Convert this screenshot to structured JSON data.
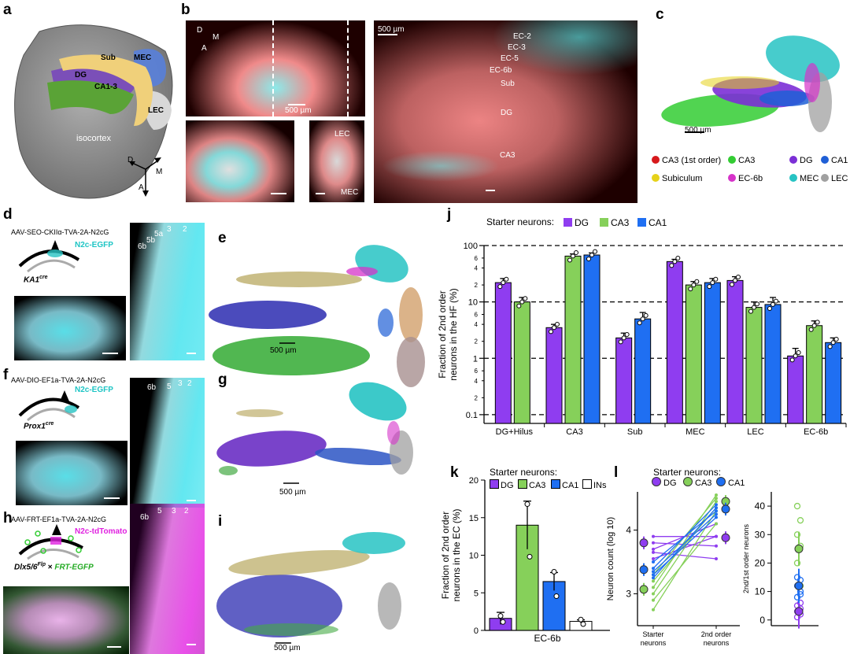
{
  "panels": {
    "a": "a",
    "b": "b",
    "c": "c",
    "d": "d",
    "e": "e",
    "f": "f",
    "g": "g",
    "h": "h",
    "i": "i",
    "j": "j",
    "k": "k",
    "l": "l"
  },
  "panel_a": {
    "labels": {
      "sub": "Sub",
      "mec": "MEC",
      "dg": "DG",
      "ca": "CA1-3",
      "lec": "LEC",
      "isocortex": "isocortex"
    },
    "compass": {
      "d": "D",
      "m": "M",
      "a": "A"
    }
  },
  "panel_b": {
    "compass": {
      "d": "D",
      "m": "M",
      "a": "A"
    },
    "scale1": "500 µm",
    "scale2": "500 µm",
    "lec": "LEC",
    "mec": "MEC",
    "layers": [
      "EC-2",
      "EC-3",
      "EC-5",
      "EC-6b",
      "Sub",
      "DG",
      "CA3"
    ]
  },
  "panel_c": {
    "scale": "500 µm",
    "legend": [
      {
        "label": "CA3 (1st order)",
        "color": "#d7191c"
      },
      {
        "label": "CA3",
        "color": "#33cc33"
      },
      {
        "label": "DG",
        "color": "#7b2fd6"
      },
      {
        "label": "CA1",
        "color": "#1f5fd6"
      },
      {
        "label": "Subiculum",
        "color": "#e6d21a"
      },
      {
        "label": "EC-6b",
        "color": "#d633c9"
      },
      {
        "label": "MEC",
        "color": "#27c3c3"
      },
      {
        "label": "LEC",
        "color": "#a0a0a0"
      }
    ]
  },
  "panel_d": {
    "vector": "AAV-SEO-CKIIα-TVA-2A-N2cG",
    "reporter": "N2c-EGFP",
    "mouse": "KA1",
    "mouse_sup": "cre",
    "layers": [
      "6b",
      "5b",
      "5a",
      "3",
      "2"
    ]
  },
  "panel_e": {
    "scale": "500 µm"
  },
  "panel_f": {
    "vector": "AAV-DIO-EF1a-TVA-2A-N2cG",
    "reporter": "N2c-EGFP",
    "mouse": "Prox1",
    "mouse_sup": "cre",
    "layers": [
      "6b",
      "5",
      "3",
      "2"
    ]
  },
  "panel_g": {
    "scale": "500 µm"
  },
  "panel_h": {
    "vector": "AAV-FRT-EF1a-TVA-2A-N2cG",
    "reporter": "N2c-tdTomato",
    "mouse1": "Dlx5/6",
    "mouse1_sup": "Flp",
    "cross": "×",
    "mouse2": "FRT-EGFP",
    "layers": [
      "6b",
      "5",
      "3",
      "2"
    ]
  },
  "panel_i": {
    "scale": "500 µm"
  },
  "panel_j": {
    "legend_title": "Starter neurons:",
    "ylabel_line1": "Fraction of 2nd order",
    "ylabel_line2": "neurons in the HF (%)",
    "yticks": [
      "100",
      "10",
      "1",
      "0.1"
    ],
    "yminor": [
      "6",
      "4",
      "2",
      "6",
      "4",
      "2",
      "6",
      "4",
      "2"
    ],
    "colors": {
      "DG": "#8f3df0",
      "CA3": "#86d05a",
      "CA1": "#1f6ff2"
    }
  },
  "panel_k": {
    "legend_title": "Starter neurons:",
    "ylabel_line1": "Fraction of 2nd order",
    "ylabel_line2": "neurons in the EC (%)",
    "yticks": [
      "0",
      "5",
      "10",
      "15",
      "20"
    ],
    "xlabel": "EC-6b"
  },
  "panel_l": {
    "legend_title": "Starter neurons:",
    "ylabel": "Neuron count (log 10)",
    "yticks": [
      "3",
      "4"
    ],
    "xticks": [
      [
        "Starter",
        "neurons"
      ],
      [
        "2nd order",
        "neurons"
      ]
    ],
    "ylabel2": "2nd/1st order neurons",
    "yticks2": [
      "0",
      "10",
      "20",
      "30",
      "40"
    ]
  },
  "chart_data": [
    {
      "type": "bar",
      "title": "",
      "ylabel": "Fraction of 2nd order neurons in the HF (%)",
      "yscale": "log",
      "ylim": [
        0.07,
        100
      ],
      "categories": [
        "DG+Hilus",
        "CA3",
        "Sub",
        "MEC",
        "LEC",
        "EC-6b"
      ],
      "series": [
        {
          "name": "DG",
          "values": [
            22,
            3.5,
            2.3,
            52,
            24,
            1.1
          ],
          "errors": [
            4,
            0.5,
            0.5,
            5,
            4,
            0.4
          ]
        },
        {
          "name": "CA3",
          "values": [
            10,
            65,
            null,
            20,
            8,
            3.8
          ],
          "errors": [
            2,
            6,
            null,
            3,
            2,
            0.8
          ]
        },
        {
          "name": "CA1",
          "values": [
            null,
            68,
            5,
            22,
            9,
            1.9
          ],
          "errors": [
            null,
            6,
            1.5,
            4,
            3,
            0.4
          ]
        }
      ],
      "grid": "dashed at 0.1, 1, 10, 100",
      "legend": "top"
    },
    {
      "type": "bar",
      "title": "",
      "ylabel": "Fraction of 2nd order neurons in the EC (%)",
      "ylim": [
        0,
        20
      ],
      "categories": [
        "EC-6b"
      ],
      "series": [
        {
          "name": "DG",
          "values": [
            1.6
          ],
          "errors": [
            0.8
          ]
        },
        {
          "name": "CA3",
          "values": [
            14
          ],
          "errors": [
            3.2
          ]
        },
        {
          "name": "CA1",
          "values": [
            6.5
          ],
          "errors": [
            1.2
          ]
        },
        {
          "name": "INs",
          "values": [
            1.2
          ],
          "errors": [
            0.2
          ]
        }
      ],
      "legend": "top"
    },
    {
      "type": "line",
      "title": "",
      "ylabel": "Neuron count (log 10)",
      "categories": [
        "Starter neurons",
        "2nd order neurons"
      ],
      "ylim": [
        2.5,
        4.6
      ],
      "series": [
        {
          "name": "DG",
          "mean": [
            3.8,
            3.88
          ],
          "lines": [
            [
              3.9,
              3.9
            ],
            [
              3.8,
              3.75
            ],
            [
              3.7,
              4.1
            ],
            [
              3.65,
              3.55
            ],
            [
              3.55,
              3.9
            ]
          ]
        },
        {
          "name": "CA3",
          "mean": [
            3.07,
            4.45
          ],
          "lines": [
            [
              3.3,
              4.5
            ],
            [
              3.0,
              4.45
            ],
            [
              2.9,
              4.1
            ],
            [
              3.1,
              4.55
            ],
            [
              2.75,
              4.3
            ],
            [
              3.2,
              4.35
            ]
          ]
        },
        {
          "name": "CA1",
          "mean": [
            3.38,
            4.33
          ],
          "lines": [
            [
              3.5,
              4.3
            ],
            [
              3.4,
              4.4
            ],
            [
              3.3,
              4.2
            ],
            [
              3.35,
              4.25
            ],
            [
              3.25,
              4.35
            ]
          ]
        }
      ]
    },
    {
      "type": "scatter",
      "title": "",
      "ylabel": "2nd/1st order neurons",
      "ylim": [
        -2,
        45
      ],
      "series": [
        {
          "name": "DG",
          "mean": 3,
          "values": [
            1,
            2,
            3,
            4,
            5,
            6
          ]
        },
        {
          "name": "CA3",
          "mean": 25,
          "values": [
            40,
            35,
            30,
            26,
            20,
            12
          ]
        },
        {
          "name": "CA1",
          "mean": 12,
          "values": [
            8,
            10,
            12,
            14,
            15,
            9
          ]
        }
      ]
    }
  ]
}
